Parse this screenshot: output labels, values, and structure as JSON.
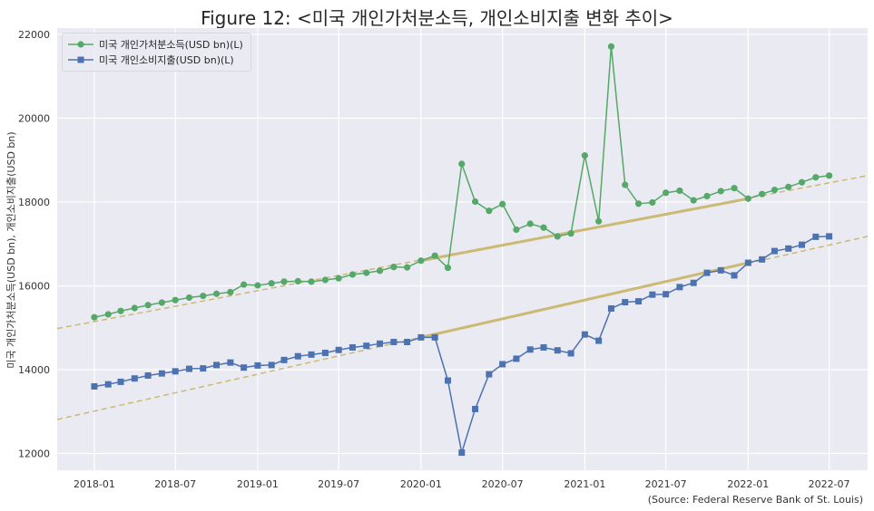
{
  "chart_data": {
    "type": "line",
    "title": "Figure 12: <미국 개인가처분소득, 개인소비지출 변화 추이>",
    "ylabel": "미국 개인가처분소득(USD bn), 개인소비지출(USD bn)",
    "xlabel": "",
    "source": "(Source: Federal Reserve Bank of St. Louis)",
    "x": [
      "2018-01",
      "2018-02",
      "2018-03",
      "2018-04",
      "2018-05",
      "2018-06",
      "2018-07",
      "2018-08",
      "2018-09",
      "2018-10",
      "2018-11",
      "2018-12",
      "2019-01",
      "2019-02",
      "2019-03",
      "2019-04",
      "2019-05",
      "2019-06",
      "2019-07",
      "2019-08",
      "2019-09",
      "2019-10",
      "2019-11",
      "2019-12",
      "2020-01",
      "2020-02",
      "2020-03",
      "2020-04",
      "2020-05",
      "2020-06",
      "2020-07",
      "2020-08",
      "2020-09",
      "2020-10",
      "2020-11",
      "2020-12",
      "2021-01",
      "2021-02",
      "2021-03",
      "2021-04",
      "2021-05",
      "2021-06",
      "2021-07",
      "2021-08",
      "2021-09",
      "2021-10",
      "2021-11",
      "2021-12",
      "2022-01",
      "2022-02",
      "2022-03",
      "2022-04",
      "2022-05",
      "2022-06",
      "2022-07"
    ],
    "xticks": [
      "2018-01",
      "2018-07",
      "2019-01",
      "2019-07",
      "2020-01",
      "2020-07",
      "2021-01",
      "2021-07",
      "2022-01",
      "2022-07"
    ],
    "yticks": [
      12000,
      14000,
      16000,
      18000,
      20000,
      22000
    ],
    "ylim": [
      11600,
      22150
    ],
    "xlim": [
      "2017-10-10",
      "2022-09-25"
    ],
    "grid": true,
    "legend_position": "top-left",
    "series": [
      {
        "name": "미국 개인가처분소득(USD bn)(L)",
        "color": "#55a868",
        "marker": "circle",
        "values": [
          15250,
          15320,
          15400,
          15470,
          15540,
          15600,
          15660,
          15720,
          15760,
          15810,
          15850,
          16030,
          16010,
          16060,
          16100,
          16110,
          16100,
          16140,
          16180,
          16270,
          16310,
          16360,
          16450,
          16440,
          16600,
          16720,
          16430,
          18910,
          18010,
          17790,
          17950,
          17340,
          17480,
          17390,
          17180,
          17250,
          19110,
          17540,
          21710,
          18410,
          17960,
          17990,
          18220,
          18270,
          18040,
          18140,
          18260,
          18330,
          18080,
          18190,
          18290,
          18360,
          18470,
          18590,
          18630
        ]
      },
      {
        "name": "미국 개인소비지출(USD bn)(L)",
        "color": "#4c72b0",
        "marker": "square",
        "values": [
          13600,
          13650,
          13710,
          13790,
          13860,
          13910,
          13960,
          14020,
          14030,
          14110,
          14170,
          14050,
          14100,
          14110,
          14230,
          14320,
          14360,
          14400,
          14470,
          14530,
          14570,
          14620,
          14660,
          14660,
          14770,
          14770,
          13740,
          12020,
          13060,
          13890,
          14130,
          14260,
          14480,
          14530,
          14460,
          14390,
          14840,
          14690,
          15460,
          15610,
          15630,
          15790,
          15800,
          15970,
          16070,
          16310,
          16370,
          16250,
          16550,
          16630,
          16830,
          16890,
          16980,
          17170,
          17180
        ]
      }
    ],
    "trend_lines": [
      {
        "kind": "pre-2020 trend (dashed, extended)",
        "color": "#ccb974",
        "points": [
          [
            "2017-10-10",
            14980
          ],
          [
            "2022-09-25",
            18630
          ]
        ]
      },
      {
        "kind": "pre-2020 trend (dashed, extended)",
        "color": "#ccb974",
        "points": [
          [
            "2017-10-10",
            12810
          ],
          [
            "2022-09-25",
            17180
          ]
        ]
      },
      {
        "kind": "2020-01 to 2022-01 (solid)",
        "color": "#ccb974",
        "points": [
          [
            "2020-01-01",
            16600
          ],
          [
            "2022-01-01",
            18080
          ]
        ]
      },
      {
        "kind": "2020-01 to 2022-01 (solid)",
        "color": "#ccb974",
        "points": [
          [
            "2020-01-01",
            14770
          ],
          [
            "2022-01-01",
            16550
          ]
        ]
      }
    ]
  }
}
